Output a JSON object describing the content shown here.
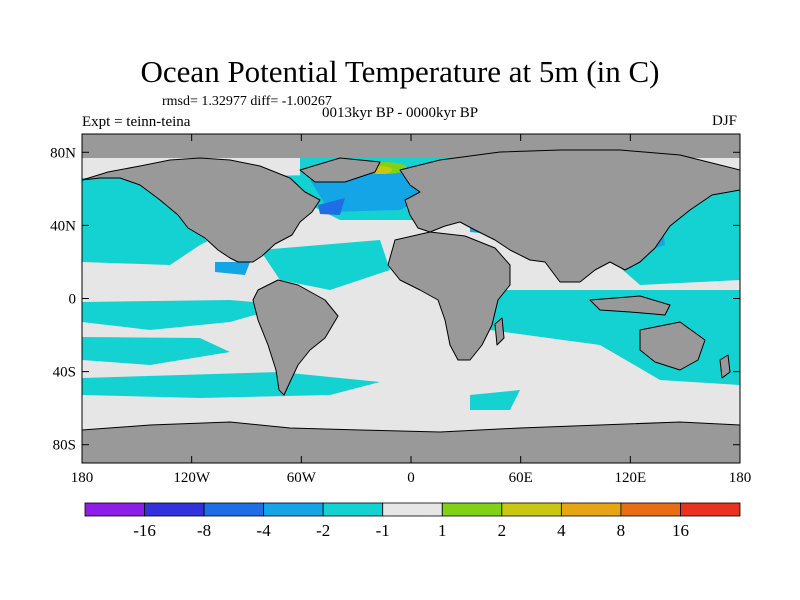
{
  "title": "Ocean Potential Temperature at 5m (in C)",
  "stats_line": "rmsd= 1.32977 diff= -1.00267",
  "period_label": "0013kyr BP - 0000kyr BP",
  "experiment_label": "Expt = teinn-teina",
  "season_label": "DJF",
  "map": {
    "projection": "cylindrical-equidistant",
    "lon_range": [
      -180,
      180
    ],
    "lat_range": [
      -90,
      90
    ],
    "land_color": "#999999",
    "coastline_color": "#000000",
    "x_ticks": [
      {
        "lon": -180,
        "label": "180"
      },
      {
        "lon": -120,
        "label": "120W"
      },
      {
        "lon": -60,
        "label": "60W"
      },
      {
        "lon": 0,
        "label": "0"
      },
      {
        "lon": 60,
        "label": "60E"
      },
      {
        "lon": 120,
        "label": "120E"
      },
      {
        "lon": 180,
        "label": "180"
      }
    ],
    "y_ticks": [
      {
        "lat": 80,
        "label": "80N"
      },
      {
        "lat": 40,
        "label": "40N"
      },
      {
        "lat": 0,
        "label": "0"
      },
      {
        "lat": -40,
        "label": "40S"
      },
      {
        "lat": -80,
        "label": "80S"
      }
    ]
  },
  "colorbar": {
    "colors": [
      "#8c1ee6",
      "#3232dc",
      "#1e6ee6",
      "#14a5e6",
      "#14d2d2",
      "#e6e6e6",
      "#82d214",
      "#c8c814",
      "#e6a514",
      "#e66e14",
      "#e6321e"
    ],
    "levels": [
      "-16",
      "-8",
      "-4",
      "-2",
      "-1",
      "1",
      "2",
      "4",
      "8",
      "16"
    ]
  }
}
